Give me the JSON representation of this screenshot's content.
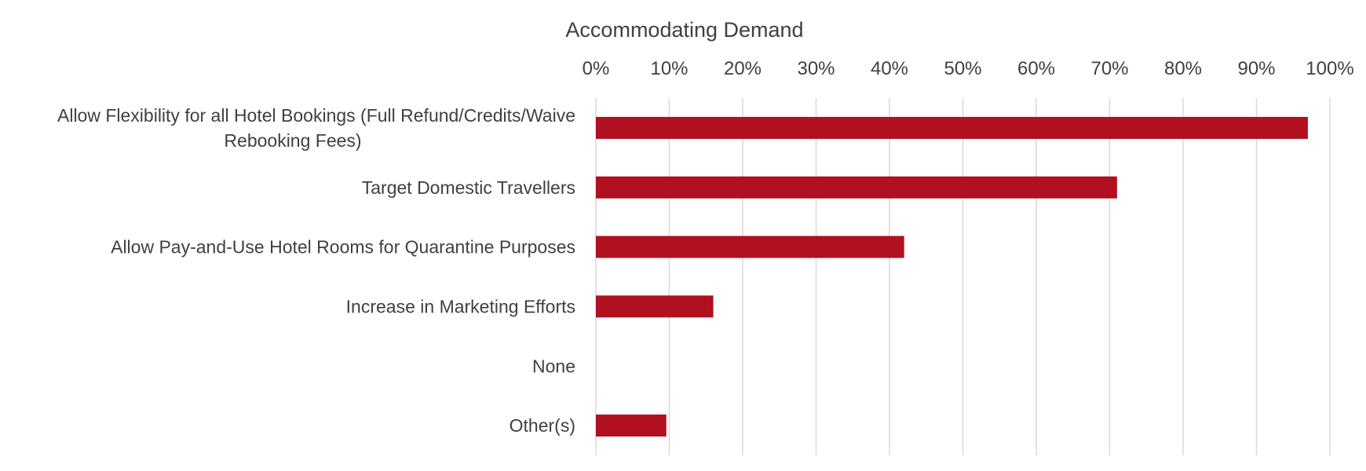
{
  "chart_data": {
    "type": "bar",
    "orientation": "horizontal",
    "title": "Accommodating Demand",
    "xlabel": "",
    "ylabel": "",
    "xaxis_position": "top",
    "xlim": [
      0,
      100
    ],
    "xticks": [
      "0%",
      "10%",
      "20%",
      "30%",
      "40%",
      "50%",
      "60%",
      "70%",
      "80%",
      "90%",
      "100%"
    ],
    "grid": true,
    "legend": "none",
    "bar_color": "#b01020",
    "categories": [
      "Allow Flexibility for all Hotel Bookings (Full Refund/Credits/Waive Rebooking Fees)",
      "Target Domestic Travellers",
      "Allow Pay-and-Use Hotel Rooms for Quarantine Purposes",
      "Increase in Marketing Efforts",
      "None",
      "Other(s)"
    ],
    "category_lines": [
      [
        "Allow Flexibility for all Hotel Bookings (Full Refund/Credits/Waive",
        "Rebooking Fees)"
      ],
      [
        "Target Domestic Travellers"
      ],
      [
        "Allow Pay-and-Use Hotel Rooms for Quarantine Purposes"
      ],
      [
        "Increase in Marketing Efforts"
      ],
      [
        "None"
      ],
      [
        "Other(s)"
      ]
    ],
    "values": [
      97,
      71,
      42,
      16,
      0,
      9.6
    ]
  }
}
